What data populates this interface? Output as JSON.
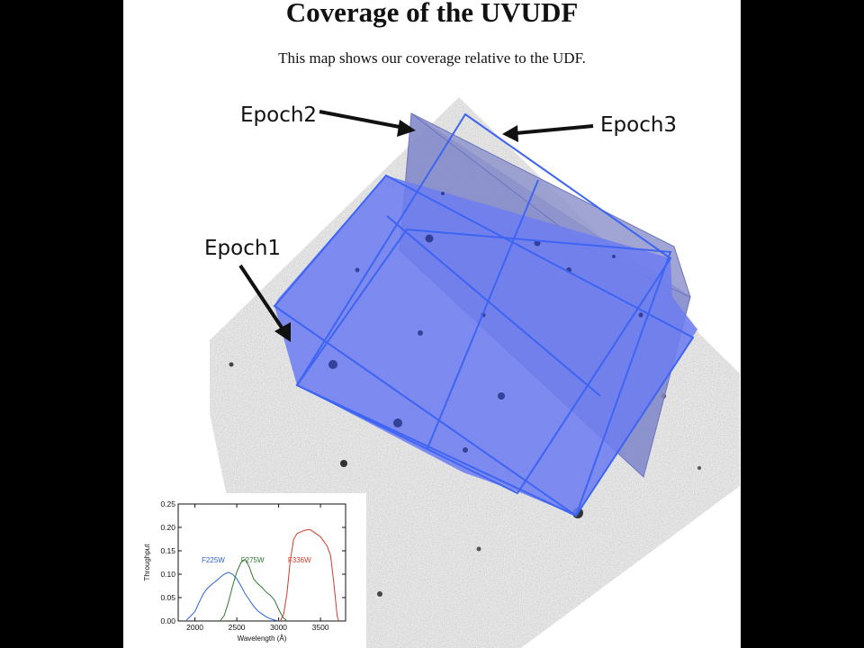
{
  "title": "Coverage of the UVUDF",
  "subtitle": "This map shows our coverage relative to the UDF.",
  "epochs": [
    {
      "label": "Epoch1"
    },
    {
      "label": "Epoch2"
    },
    {
      "label": "Epoch3"
    }
  ],
  "colors": {
    "background": "#000000",
    "slide": "#ffffff",
    "field_gray": "#c9c9c9",
    "coverage_fill": "#6f7ef2",
    "coverage_edge": "#3d64f2",
    "epoch2_fill": "#8c93cf",
    "f225w": "#2a62d9",
    "f275w": "#2f7a2a",
    "f336w": "#d23a2a"
  },
  "chart_data": {
    "type": "line",
    "xlabel": "Wavelength (Å)",
    "ylabel": "Throughput",
    "xlim": [
      1800,
      3800
    ],
    "ylim": [
      0,
      0.25
    ],
    "xticks": [
      2000,
      2500,
      3000,
      3500
    ],
    "yticks": [
      "0.00",
      "0.05",
      "0.10",
      "0.15",
      "0.20",
      "0.25"
    ],
    "grid": false,
    "series": [
      {
        "name": "F225W",
        "color": "#2a62d9",
        "label_x": 2080,
        "label_y": 0.125,
        "x": [
          1900,
          2000,
          2050,
          2100,
          2150,
          2200,
          2250,
          2300,
          2350,
          2400,
          2450,
          2500,
          2550,
          2600,
          2650,
          2700,
          2750,
          2800,
          2850,
          2900,
          2950,
          3000
        ],
        "y": [
          0.002,
          0.02,
          0.04,
          0.058,
          0.07,
          0.078,
          0.085,
          0.093,
          0.1,
          0.104,
          0.1,
          0.09,
          0.075,
          0.058,
          0.045,
          0.032,
          0.022,
          0.015,
          0.009,
          0.005,
          0.002,
          0.0
        ]
      },
      {
        "name": "F275W",
        "color": "#2f7a2a",
        "label_x": 2550,
        "label_y": 0.125,
        "x": [
          2300,
          2350,
          2400,
          2450,
          2500,
          2550,
          2600,
          2650,
          2700,
          2750,
          2800,
          2850,
          2900,
          2950,
          3000,
          3050,
          3100
        ],
        "y": [
          0.0,
          0.012,
          0.04,
          0.075,
          0.105,
          0.125,
          0.132,
          0.115,
          0.09,
          0.08,
          0.072,
          0.062,
          0.055,
          0.045,
          0.025,
          0.008,
          0.0
        ]
      },
      {
        "name": "F336W",
        "color": "#d23a2a",
        "label_x": 3110,
        "label_y": 0.125,
        "x": [
          3020,
          3060,
          3100,
          3140,
          3180,
          3220,
          3260,
          3300,
          3340,
          3380,
          3420,
          3460,
          3500,
          3540,
          3580,
          3620,
          3660,
          3700,
          3720
        ],
        "y": [
          0.0,
          0.015,
          0.06,
          0.13,
          0.175,
          0.187,
          0.19,
          0.193,
          0.195,
          0.195,
          0.19,
          0.185,
          0.18,
          0.17,
          0.16,
          0.14,
          0.08,
          0.01,
          0.0
        ]
      }
    ]
  }
}
